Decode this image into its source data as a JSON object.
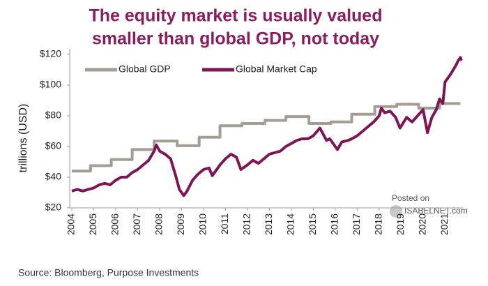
{
  "chart_data": {
    "type": "line",
    "title": [
      "The equity market is usually valued",
      "smaller than global GDP, not today"
    ],
    "y_label": "trillions (USD)",
    "source": "Source: Bloomberg, Purpose Investments",
    "watermark": [
      "Posted on",
      "ISABELNET.com"
    ],
    "xlim": [
      2004,
      2021.75
    ],
    "xticks": [
      2004,
      2005,
      2006,
      2007,
      2008,
      2009,
      2010,
      2011,
      2012,
      2013,
      2014,
      2015,
      2016,
      2017,
      2018,
      2019,
      2020,
      2021
    ],
    "ylim": [
      20,
      120
    ],
    "yticks": [
      {
        "value": 20,
        "label": "$20"
      },
      {
        "value": 40,
        "label": "$40"
      },
      {
        "value": 60,
        "label": "$60"
      },
      {
        "value": 80,
        "label": "$80"
      },
      {
        "value": 100,
        "label": "$100"
      },
      {
        "value": 120,
        "label": "$120"
      }
    ],
    "grid": false,
    "legend": "top-left",
    "series": [
      {
        "name": "Global GDP",
        "color": "#a59d94",
        "x": [
          2004,
          2004.85,
          2004.85,
          2005.8,
          2005.8,
          2006.75,
          2006.75,
          2007.75,
          2007.75,
          2008.8,
          2008.8,
          2009.8,
          2009.8,
          2010.75,
          2010.75,
          2011.75,
          2011.75,
          2012.8,
          2012.8,
          2013.75,
          2013.75,
          2014.8,
          2014.8,
          2015.8,
          2015.8,
          2016.75,
          2016.75,
          2017.8,
          2017.8,
          2018.8,
          2018.8,
          2019.8,
          2019.8,
          2020.75,
          2020.75,
          2021.7
        ],
        "values": [
          44,
          44,
          47.5,
          47.5,
          51.5,
          51.5,
          58,
          58,
          63.5,
          63.5,
          60.5,
          60.5,
          66,
          66,
          73.5,
          73.5,
          75,
          75,
          77,
          77,
          79.5,
          79.5,
          75,
          75,
          76,
          76,
          81,
          81,
          86,
          86,
          87.5,
          87.5,
          85,
          85,
          88,
          88
        ]
      },
      {
        "name": "Global Market Cap",
        "color": "#7d1654",
        "x": [
          2004,
          2004.25,
          2004.5,
          2004.75,
          2005,
          2005.25,
          2005.5,
          2005.75,
          2006,
          2006.25,
          2006.5,
          2006.75,
          2007,
          2007.25,
          2007.5,
          2007.75,
          2007.85,
          2008,
          2008.25,
          2008.5,
          2008.75,
          2008.9,
          2009.1,
          2009.25,
          2009.5,
          2009.75,
          2010,
          2010.25,
          2010.4,
          2010.75,
          2011,
          2011.25,
          2011.5,
          2011.7,
          2012,
          2012.25,
          2012.5,
          2012.75,
          2013,
          2013.25,
          2013.5,
          2013.75,
          2014,
          2014.25,
          2014.5,
          2014.75,
          2015,
          2015.3,
          2015.6,
          2015.75,
          2016.1,
          2016.3,
          2016.6,
          2016.75,
          2017,
          2017.25,
          2017.5,
          2017.75,
          2018,
          2018.1,
          2018.25,
          2018.5,
          2018.75,
          2018.95,
          2019.25,
          2019.5,
          2019.75,
          2020,
          2020.2,
          2020.4,
          2020.6,
          2020.75,
          2020.9,
          2021,
          2021.25,
          2021.5,
          2021.6,
          2021.7,
          2021.75
        ],
        "values": [
          31,
          32,
          31,
          32,
          33,
          35,
          36,
          35,
          38,
          40,
          40,
          43,
          45,
          48,
          51,
          57,
          61,
          57,
          55,
          52,
          40,
          32,
          28,
          31,
          38,
          42,
          45,
          46,
          41,
          48,
          52,
          55,
          53,
          45,
          48,
          51,
          49,
          52,
          55,
          56,
          57,
          60,
          62,
          64,
          65,
          65,
          67,
          72,
          64,
          65,
          58,
          63,
          64,
          65,
          67,
          70,
          73,
          76,
          80,
          85,
          82,
          83,
          79,
          72,
          79,
          76,
          80,
          84,
          69,
          79,
          84,
          91,
          88,
          102,
          107,
          113,
          116,
          118,
          116
        ]
      }
    ]
  }
}
